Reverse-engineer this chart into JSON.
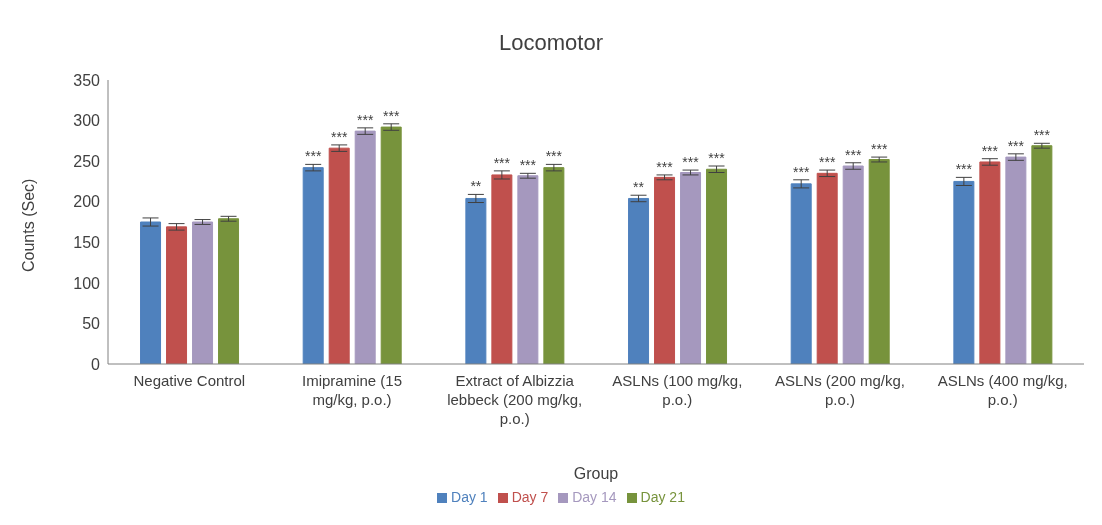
{
  "chart_data": {
    "type": "bar",
    "title": "Locomotor",
    "xlabel": "Group",
    "ylabel": "Counts (Sec)",
    "categories": [
      "Negative Control",
      "Imipramine  (15 mg/kg, p.o.)",
      "Extract of Albizzia lebbeck (200 mg/kg, p.o.)",
      "ASLNs  (100 mg/kg, p.o.)",
      "ASLNs  (200 mg/kg, p.o.)",
      "ASLNs  (400 mg/kg, p.o.)"
    ],
    "series": [
      {
        "name": "Day 1",
        "color": "#4f81bd",
        "values": [
          175,
          242,
          204,
          204,
          222,
          225
        ],
        "errors": [
          5,
          4,
          5,
          4,
          5,
          5
        ],
        "value_labels": [
          null,
          "***",
          "**",
          "**",
          "***",
          "***"
        ]
      },
      {
        "name": "Day 7",
        "color": "#c0504d",
        "values": [
          169,
          266,
          233,
          230,
          235,
          249
        ],
        "errors": [
          4,
          4,
          5,
          3,
          4,
          4
        ],
        "value_labels": [
          null,
          "***",
          "***",
          "***",
          "***",
          "***"
        ]
      },
      {
        "name": "Day 14",
        "color": "#a598be",
        "values": [
          175,
          287,
          232,
          236,
          244,
          255
        ],
        "errors": [
          3,
          4,
          3,
          3,
          4,
          4
        ],
        "value_labels": [
          null,
          "***",
          "***",
          "***",
          "***",
          "***"
        ]
      },
      {
        "name": "Day 21",
        "color": "#77933c",
        "values": [
          179,
          292,
          242,
          240,
          252,
          269
        ],
        "errors": [
          3,
          4,
          4,
          4,
          3,
          3
        ],
        "value_labels": [
          null,
          "***",
          "***",
          "***",
          "***",
          "***"
        ]
      }
    ],
    "ylim": [
      0,
      350
    ],
    "yticks": [
      0,
      50,
      100,
      150,
      200,
      250,
      300,
      350
    ],
    "grid": false,
    "legend": "bottom"
  }
}
